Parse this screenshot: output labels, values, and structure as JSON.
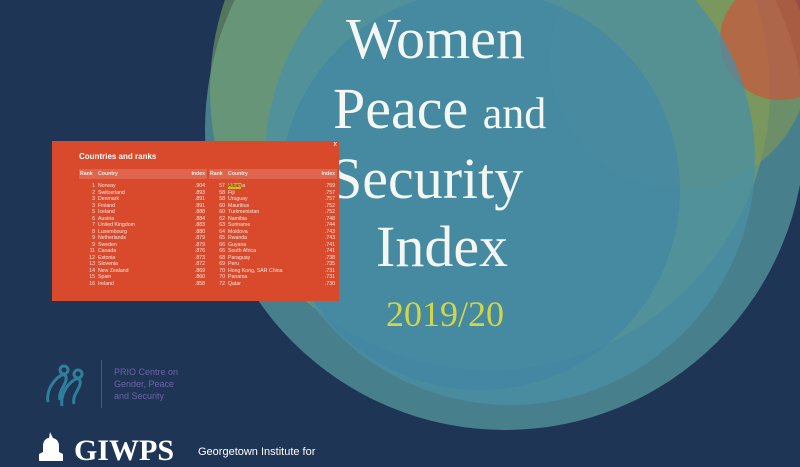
{
  "cover": {
    "title_line1": "Women",
    "title_line2_a": "Peace ",
    "title_line2_b": "and",
    "title_line3": "Security",
    "title_line4": "Index",
    "year": "2019/20"
  },
  "ranks_panel": {
    "heading": "Countries and ranks",
    "col_rank": "Rank",
    "col_country": "Country",
    "col_index": "Index",
    "close_label": "x",
    "left_rows": [
      {
        "rank": "1",
        "country": "Norway",
        "index": ".904"
      },
      {
        "rank": "2",
        "country": "Switzerland",
        "index": ".893"
      },
      {
        "rank": "3",
        "country": "Denmark",
        "index": ".891"
      },
      {
        "rank": "3",
        "country": "Finland",
        "index": ".891"
      },
      {
        "rank": "5",
        "country": "Iceland",
        "index": ".888"
      },
      {
        "rank": "6",
        "country": "Austria",
        "index": ".884"
      },
      {
        "rank": "7",
        "country": "United Kingdom",
        "index": ".883"
      },
      {
        "rank": "8",
        "country": "Luxembourg",
        "index": ".880"
      },
      {
        "rank": "9",
        "country": "Netherlands",
        "index": ".879"
      },
      {
        "rank": "9",
        "country": "Sweden",
        "index": ".879"
      },
      {
        "rank": "11",
        "country": "Canada",
        "index": ".876"
      },
      {
        "rank": "12",
        "country": "Estonia",
        "index": ".873"
      },
      {
        "rank": "13",
        "country": "Slovenia",
        "index": ".872"
      },
      {
        "rank": "14",
        "country": "New Zealand",
        "index": ".869"
      },
      {
        "rank": "15",
        "country": "Spain",
        "index": ".860"
      },
      {
        "rank": "16",
        "country": "Ireland",
        "index": ".858"
      }
    ],
    "right_rows": [
      {
        "rank": "57",
        "country_hl": "Alban",
        "country": "ia",
        "index": ".759"
      },
      {
        "rank": "58",
        "country": "Fiji",
        "index": ".757"
      },
      {
        "rank": "58",
        "country": "Uruguay",
        "index": ".757"
      },
      {
        "rank": "60",
        "country": "Mauritius",
        "index": ".752"
      },
      {
        "rank": "60",
        "country": "Turkmenistan",
        "index": ".752"
      },
      {
        "rank": "62",
        "country": "Namibia",
        "index": ".748"
      },
      {
        "rank": "63",
        "country": "Suriname",
        "index": ".744"
      },
      {
        "rank": "64",
        "country": "Moldova",
        "index": ".743"
      },
      {
        "rank": "65",
        "country": "Rwanda",
        "index": ".743"
      },
      {
        "rank": "66",
        "country": "Guyana",
        "index": ".741"
      },
      {
        "rank": "66",
        "country": "South Africa",
        "index": ".741"
      },
      {
        "rank": "68",
        "country": "Paraguay",
        "index": ".738"
      },
      {
        "rank": "69",
        "country": "Peru",
        "index": ".735"
      },
      {
        "rank": "70",
        "country": "Hong Kong, SAR China",
        "index": ".731"
      },
      {
        "rank": "70",
        "country": "Panama",
        "index": ".731"
      },
      {
        "rank": "72",
        "country": "Qatar",
        "index": ".730"
      }
    ]
  },
  "prio": {
    "line1": "PRIO Centre on",
    "line2": "Gender, Peace",
    "line3": "and Security"
  },
  "giwps": {
    "name": "GIWPS",
    "desc": "Georgetown Institute for"
  },
  "colors": {
    "background": "#1f3556",
    "panel": "#d9492b",
    "year": "#cfd64a",
    "title": "#f4f6f2"
  }
}
